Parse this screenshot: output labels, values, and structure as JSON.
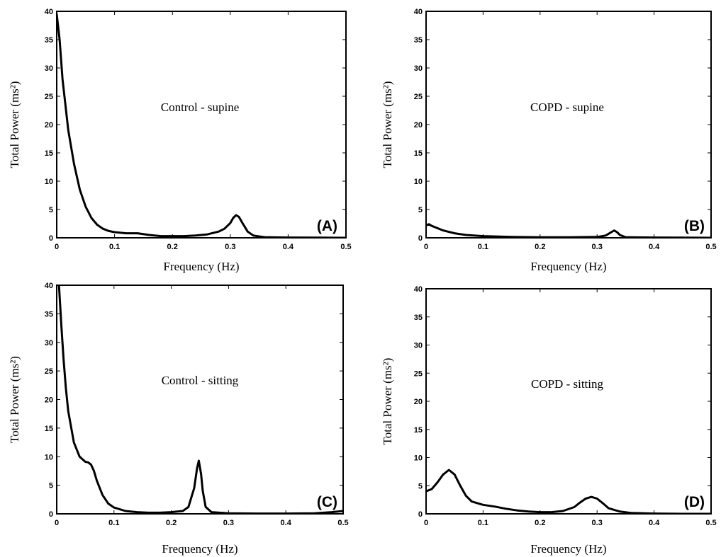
{
  "chart_data": [
    {
      "type": "line",
      "panel_label": "(A)",
      "annotation": "Control - supine",
      "xlabel": "Frequency (Hz)",
      "ylabel": "Total Power (ms²)",
      "xlim": [
        0,
        0.5
      ],
      "ylim": [
        0,
        40
      ],
      "x_ticks": [
        "0",
        "0.1",
        "0.2",
        "0.3",
        "0.4",
        "0.5"
      ],
      "y_ticks": [
        "0",
        "5",
        "10",
        "15",
        "20",
        "25",
        "30",
        "35",
        "40"
      ],
      "grid": false,
      "series": [
        {
          "x": [
            0,
            0.005,
            0.01,
            0.02,
            0.03,
            0.04,
            0.05,
            0.06,
            0.07,
            0.08,
            0.09,
            0.1,
            0.12,
            0.14,
            0.16,
            0.18,
            0.2,
            0.22,
            0.24,
            0.26,
            0.28,
            0.29,
            0.3,
            0.305,
            0.31,
            0.315,
            0.32,
            0.33,
            0.34,
            0.36,
            0.4,
            0.45,
            0.5
          ],
          "y": [
            39.5,
            35,
            28,
            19,
            13,
            8.5,
            5.5,
            3.5,
            2.3,
            1.6,
            1.2,
            1.0,
            0.8,
            0.8,
            0.5,
            0.3,
            0.3,
            0.3,
            0.4,
            0.6,
            1.1,
            1.6,
            2.6,
            3.5,
            4.0,
            3.7,
            2.8,
            1.1,
            0.4,
            0.1,
            0.05,
            0.02,
            0.0
          ]
        }
      ]
    },
    {
      "type": "line",
      "panel_label": "(B)",
      "annotation": "COPD - supine",
      "xlabel": "Frequency (Hz)",
      "ylabel": "Total Power (ms²)",
      "xlim": [
        0,
        0.5
      ],
      "ylim": [
        0,
        40
      ],
      "x_ticks": [
        "0",
        "0.1",
        "0.2",
        "0.3",
        "0.4",
        "0.5"
      ],
      "y_ticks": [
        "0",
        "5",
        "10",
        "15",
        "20",
        "25",
        "30",
        "35",
        "40"
      ],
      "grid": false,
      "series": [
        {
          "x": [
            0,
            0.005,
            0.01,
            0.02,
            0.03,
            0.05,
            0.07,
            0.1,
            0.15,
            0.2,
            0.25,
            0.3,
            0.315,
            0.325,
            0.33,
            0.335,
            0.34,
            0.35,
            0.4,
            0.45,
            0.5
          ],
          "y": [
            2.2,
            2.4,
            2.1,
            1.7,
            1.3,
            0.8,
            0.5,
            0.3,
            0.15,
            0.1,
            0.1,
            0.15,
            0.4,
            1.0,
            1.3,
            1.0,
            0.5,
            0.1,
            0.05,
            0.02,
            0.0
          ]
        }
      ]
    },
    {
      "type": "line",
      "panel_label": "(C)",
      "annotation": "Control - sitting",
      "xlabel": "Frequency (Hz)",
      "ylabel": "Total Power (ms²)",
      "xlim": [
        0,
        0.5
      ],
      "ylim": [
        0,
        40
      ],
      "x_ticks": [
        "0",
        "0.1",
        "0.2",
        "0.3",
        "0.4",
        "0.5"
      ],
      "y_ticks": [
        "0",
        "5",
        "10",
        "15",
        "20",
        "25",
        "30",
        "35",
        "40"
      ],
      "grid": false,
      "series": [
        {
          "x": [
            0.004,
            0.008,
            0.012,
            0.016,
            0.02,
            0.03,
            0.04,
            0.05,
            0.055,
            0.06,
            0.065,
            0.07,
            0.08,
            0.09,
            0.1,
            0.12,
            0.14,
            0.16,
            0.18,
            0.2,
            0.22,
            0.23,
            0.24,
            0.245,
            0.248,
            0.252,
            0.255,
            0.26,
            0.27,
            0.3,
            0.35,
            0.4,
            0.45,
            0.48,
            0.5
          ],
          "y": [
            40,
            33,
            27,
            22,
            18,
            12.5,
            10,
            9.1,
            9.0,
            8.6,
            7.5,
            5.8,
            3.3,
            1.8,
            1.1,
            0.5,
            0.3,
            0.2,
            0.2,
            0.3,
            0.5,
            1.2,
            4.5,
            8.0,
            9.3,
            7.0,
            4.0,
            1.2,
            0.3,
            0.1,
            0.05,
            0.05,
            0.1,
            0.3,
            0.5
          ]
        }
      ]
    },
    {
      "type": "line",
      "panel_label": "(D)",
      "annotation": "COPD - sitting",
      "xlabel": "Frequency (Hz)",
      "ylabel": "Total Power (ms²)",
      "xlim": [
        0,
        0.5
      ],
      "ylim": [
        0,
        40
      ],
      "x_ticks": [
        "0",
        "0.1",
        "0.2",
        "0.3",
        "0.4",
        "0.5"
      ],
      "y_ticks": [
        "0",
        "5",
        "10",
        "15",
        "20",
        "25",
        "30",
        "35",
        "40"
      ],
      "grid": false,
      "series": [
        {
          "x": [
            0,
            0.01,
            0.02,
            0.03,
            0.04,
            0.05,
            0.06,
            0.07,
            0.08,
            0.1,
            0.12,
            0.14,
            0.16,
            0.18,
            0.2,
            0.22,
            0.24,
            0.26,
            0.27,
            0.28,
            0.29,
            0.3,
            0.31,
            0.32,
            0.34,
            0.36,
            0.4,
            0.45,
            0.5
          ],
          "y": [
            4.0,
            4.4,
            5.6,
            7.0,
            7.8,
            7.0,
            5.0,
            3.2,
            2.2,
            1.6,
            1.3,
            0.9,
            0.6,
            0.4,
            0.3,
            0.3,
            0.5,
            1.2,
            2.0,
            2.7,
            3.0,
            2.7,
            1.9,
            1.0,
            0.4,
            0.15,
            0.05,
            0.0,
            0.0
          ]
        }
      ]
    }
  ]
}
